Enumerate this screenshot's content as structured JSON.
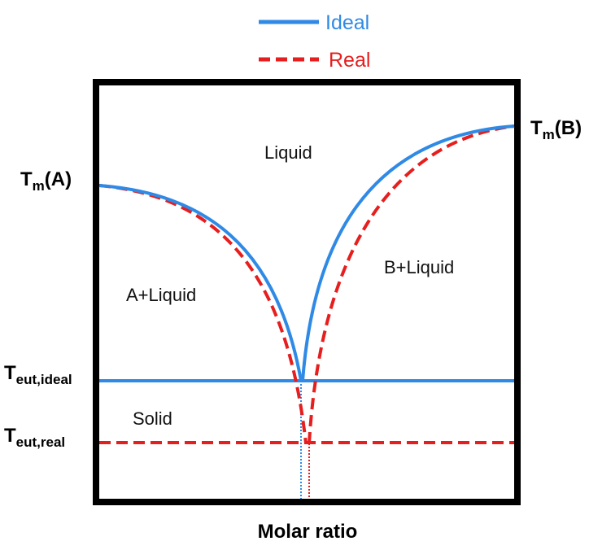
{
  "legend": [
    {
      "label": "Ideal",
      "color": "#2f8ae6"
    },
    {
      "label": "Real",
      "color": "#e61e1e"
    }
  ],
  "regions": [
    "Liquid",
    "A+Liquid",
    "B+Liquid",
    "Solid"
  ],
  "temperature_labels": [
    {
      "symbol": "T",
      "subscript": "m",
      "suffix": "(A)"
    },
    {
      "symbol": "T",
      "subscript": "m",
      "suffix": "(B)"
    },
    {
      "symbol": "T",
      "subscript": "eut,ideal"
    },
    {
      "symbol": "T",
      "subscript": "eut,real"
    }
  ],
  "x_axis_label": "Molar ratio"
}
